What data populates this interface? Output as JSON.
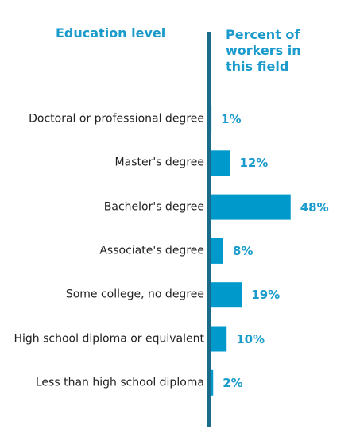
{
  "chart_data": {
    "type": "bar",
    "orientation": "horizontal",
    "y_axis_label": "Education level",
    "x_axis_label": "Percent of workers in this field",
    "categories": [
      "Doctoral or professional degree",
      "Master's degree",
      "Bachelor's degree",
      "Associate's degree",
      "Some college, no degree",
      "High school diploma or equivalent",
      "Less than high school diploma"
    ],
    "values": [
      1,
      12,
      48,
      8,
      19,
      10,
      2
    ],
    "value_labels": [
      "1%",
      "12%",
      "48%",
      "8%",
      "19%",
      "10%",
      "2%"
    ],
    "color": "#0099cc",
    "axis_color": "#1a6a8a"
  }
}
